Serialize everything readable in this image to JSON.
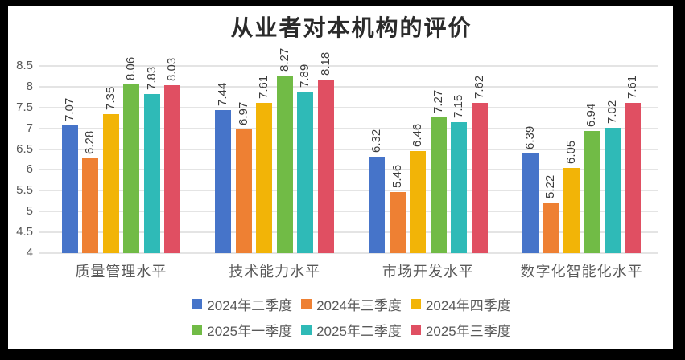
{
  "chart_data": {
    "type": "bar",
    "title": "从业者对本机构的评价",
    "categories": [
      "质量管理水平",
      "技术能力水平",
      "市场开发水平",
      "数字化智能化水平"
    ],
    "series": [
      {
        "name": "2024年二季度",
        "color": "#4674C9",
        "values": [
          7.07,
          7.44,
          6.32,
          6.39
        ]
      },
      {
        "name": "2024年三季度",
        "color": "#EE8033",
        "values": [
          6.28,
          6.97,
          5.46,
          5.22
        ]
      },
      {
        "name": "2024年四季度",
        "color": "#F2B407",
        "values": [
          7.35,
          7.61,
          6.46,
          6.05
        ]
      },
      {
        "name": "2025年一季度",
        "color": "#71BB46",
        "values": [
          8.06,
          8.27,
          7.27,
          6.94
        ]
      },
      {
        "name": "2025年二季度",
        "color": "#2FBAB7",
        "values": [
          7.83,
          7.89,
          7.15,
          7.02
        ]
      },
      {
        "name": "2025年三季度",
        "color": "#E04F62",
        "values": [
          8.03,
          8.18,
          7.62,
          7.61
        ]
      }
    ],
    "y_axis": {
      "min": 4,
      "max": 8.5,
      "step": 0.5,
      "ticks": [
        "4",
        "4.5",
        "5",
        "5.5",
        "6",
        "6.5",
        "7",
        "7.5",
        "8",
        "8.5"
      ]
    },
    "grid": true,
    "data_labels": {
      "rotation": -90,
      "decimals": 2
    },
    "legend": {
      "position": "bottom",
      "per_row": 3
    },
    "colors": {
      "background": "#ffffff",
      "frame": "#000000",
      "gridline": "#e4e4e4",
      "axis_text": "#595959",
      "label_text": "#3c3c3c",
      "title_text": "#2b2b2b"
    }
  }
}
